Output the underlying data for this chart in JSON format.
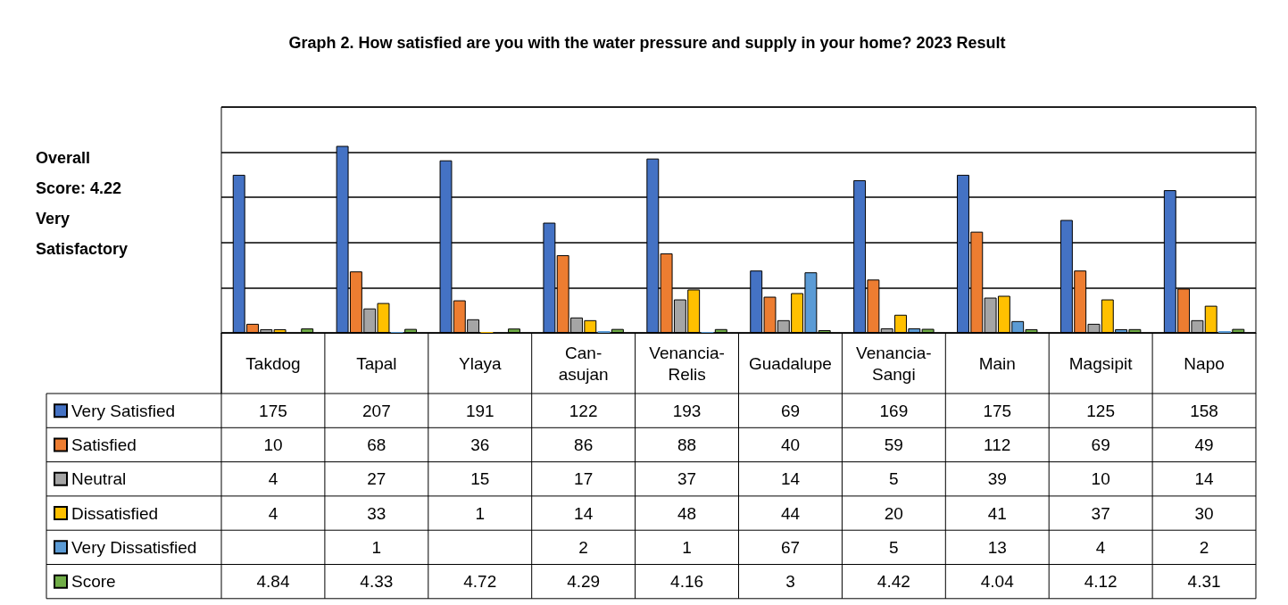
{
  "chart_data": {
    "type": "bar",
    "title": "Graph 2. How satisfied are you with the water pressure and supply in your home? 2023 Result",
    "annotations": [
      "Overall Score: 4.22 Very Satisfactory"
    ],
    "categories": [
      "Takdog",
      "Tapal",
      "Ylaya",
      "Can-asujan",
      "Venancia-Relis",
      "Guadalupe",
      "Venancia-Sangi",
      "Main",
      "Magsipit",
      "Napo"
    ],
    "series": [
      {
        "name": "Very Satisfied",
        "color": "#4472c4",
        "values": [
          175,
          207,
          191,
          122,
          193,
          69,
          169,
          175,
          125,
          158
        ]
      },
      {
        "name": "Satisfied",
        "color": "#ed7d31",
        "values": [
          10,
          68,
          36,
          86,
          88,
          40,
          59,
          112,
          69,
          49
        ]
      },
      {
        "name": "Neutral",
        "color": "#a5a5a5",
        "values": [
          4,
          27,
          15,
          17,
          37,
          14,
          5,
          39,
          10,
          14
        ]
      },
      {
        "name": "Dissatisfied",
        "color": "#ffc000",
        "values": [
          4,
          33,
          1,
          14,
          48,
          44,
          20,
          41,
          37,
          30
        ]
      },
      {
        "name": "Very Dissatisfied",
        "color": "#5b9bd5",
        "values": [
          null,
          1,
          null,
          2,
          1,
          67,
          5,
          13,
          4,
          2
        ]
      },
      {
        "name": "Score",
        "color": "#70ad47",
        "values": [
          4.84,
          4.33,
          4.72,
          4.29,
          4.16,
          3,
          4.42,
          4.04,
          4.12,
          4.31
        ]
      }
    ],
    "ylim": [
      0,
      250
    ],
    "yticks": [
      {
        "value": 0,
        "label": null
      },
      {
        "value": 50,
        "label": null
      },
      {
        "value": 100,
        "label": null
      },
      {
        "value": 150,
        "label": null
      },
      {
        "value": 200,
        "label": null
      },
      {
        "value": 250,
        "label": null
      }
    ],
    "tick_labels": "x",
    "grid": "y",
    "legend": "bottom left",
    "data_labels": true
  }
}
